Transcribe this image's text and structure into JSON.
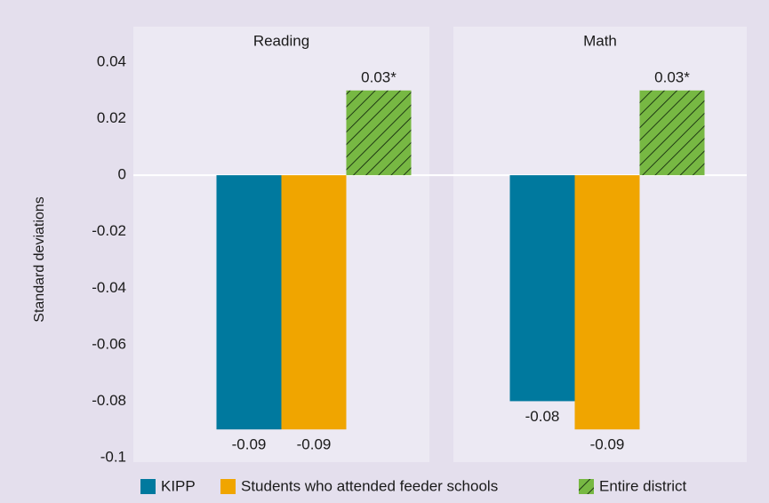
{
  "chart_data": {
    "type": "bar",
    "categories": [
      "Reading",
      "Math"
    ],
    "y_label": "Standard deviations",
    "ylim": [
      -0.1,
      0.04
    ],
    "yticks": [
      0.04,
      0.02,
      0,
      -0.02,
      -0.04,
      -0.06,
      -0.08,
      -0.1
    ],
    "series": [
      {
        "name": "KIPP",
        "color": "#00799e",
        "values": [
          -0.09,
          -0.08
        ],
        "value_labels": [
          "-0.09",
          "-0.08"
        ]
      },
      {
        "name": "Students who attended feeder schools",
        "color": "#f0a500",
        "values": [
          -0.09,
          -0.09
        ],
        "value_labels": [
          "-0.09",
          "-0.09"
        ]
      },
      {
        "name": "Entire district",
        "color": "#77b843",
        "hatch": true,
        "values": [
          0.03,
          0.03
        ],
        "value_labels": [
          "0.03*",
          "0.03*"
        ]
      }
    ]
  }
}
